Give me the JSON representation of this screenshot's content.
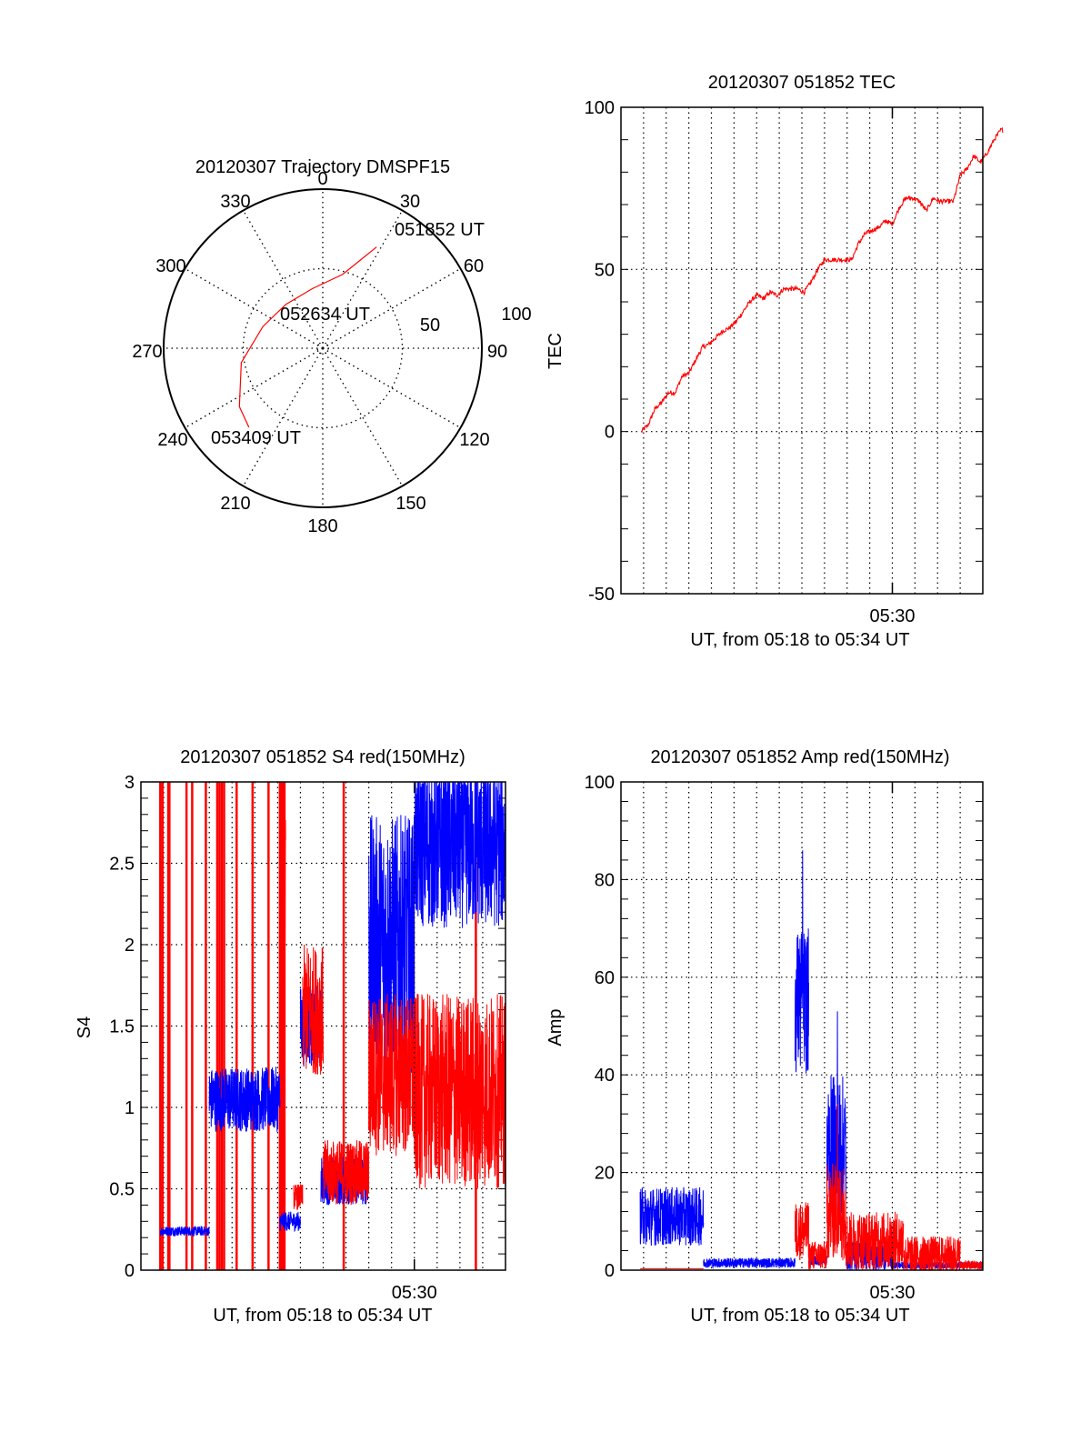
{
  "chart_data": [
    {
      "type": "polar",
      "title": "20120307 Trajectory DMSPF15",
      "angle_ticks": [
        "0",
        "30",
        "60",
        "90",
        "120",
        "150",
        "180",
        "210",
        "240",
        "270",
        "300",
        "330"
      ],
      "radial_ticks": [
        "50",
        "100"
      ],
      "rlim": [
        0,
        100
      ],
      "series": [
        {
          "name": "trajectory",
          "color": "#ff0000",
          "points": [
            [
              28,
              72
            ],
            [
              15,
              48
            ],
            [
              -10,
              38
            ],
            [
              -40,
              36
            ],
            [
              -70,
              40
            ],
            [
              -100,
              52
            ],
            [
              -125,
              64
            ],
            [
              -137,
              68
            ]
          ]
        }
      ],
      "annotations": [
        {
          "text": "051852 UT",
          "at": "start"
        },
        {
          "text": "052634 UT",
          "at": "middle"
        },
        {
          "text": "053409 UT",
          "at": "end"
        }
      ]
    },
    {
      "type": "line",
      "title": "20120307 051852 TEC",
      "xlabel": "UT, from 05:18 to 05:34 UT",
      "ylabel": "TEC",
      "xlim_minutes": [
        0,
        16
      ],
      "ylim": [
        -50,
        100
      ],
      "yticks": [
        "-50",
        "0",
        "50",
        "100"
      ],
      "xticks": [
        {
          "minute": 12,
          "label": "05:30"
        }
      ],
      "grid": true,
      "series": [
        {
          "name": "TEC",
          "color": "#ff0000",
          "x": [
            0.0,
            0.3,
            0.6,
            0.9,
            1.2,
            1.5,
            1.8,
            2.1,
            2.4,
            2.7,
            3.0,
            3.3,
            3.6,
            3.9,
            4.2,
            4.5,
            4.8,
            5.1,
            5.4,
            5.7,
            6.0,
            6.3,
            6.6,
            6.9,
            7.2,
            7.5,
            7.8,
            8.1,
            8.4,
            8.7,
            9.0,
            9.3,
            9.6,
            9.9,
            10.2,
            10.5,
            10.8,
            11.1,
            11.4,
            11.7,
            12.0,
            12.3,
            12.6,
            12.9,
            13.2,
            13.5,
            13.8,
            14.1,
            14.4,
            14.7,
            15.0,
            15.3,
            15.6,
            15.9
          ],
          "y": [
            0,
            2,
            7,
            9,
            12,
            12,
            17,
            18,
            22,
            26,
            27,
            29,
            31,
            32,
            34,
            37,
            40,
            42,
            41,
            43,
            42,
            44,
            44,
            44,
            43,
            46,
            50,
            53,
            53,
            53,
            53,
            53,
            58,
            61,
            62,
            63,
            65,
            64,
            69,
            72,
            72,
            71,
            68,
            72,
            71,
            71,
            71,
            79,
            81,
            85,
            83,
            86,
            90,
            93
          ]
        }
      ]
    },
    {
      "type": "line",
      "title": "20120307 051852 S4 red(150MHz)",
      "xlabel": "UT, from 05:18 to 05:34 UT",
      "ylabel": "S4",
      "xlim_minutes": [
        0,
        16
      ],
      "ylim": [
        0,
        3
      ],
      "yticks": [
        "0",
        "0.5",
        "1",
        "1.5",
        "2",
        "2.5",
        "3"
      ],
      "xticks": [
        {
          "minute": 12,
          "label": "05:30"
        }
      ],
      "grid": true,
      "series": [
        {
          "name": "S4 blue",
          "color": "#0000ff",
          "segments": [
            {
              "x": [
                0.85,
                3.0
              ],
              "level": 0.24,
              "noise": 0.03
            },
            {
              "x": [
                3.0,
                6.1
              ],
              "level": 1.05,
              "noise": 0.2
            },
            {
              "x": [
                6.1,
                7.0
              ],
              "level": 0.3,
              "noise": 0.06
            },
            {
              "x": [
                7.0,
                7.9
              ],
              "level": 1.5,
              "noise": 0.25
            },
            {
              "x": [
                7.9,
                10.0
              ],
              "level": 0.55,
              "noise": 0.15
            },
            {
              "x": [
                10.0,
                12.0
              ],
              "level": 2.0,
              "noise": 0.8
            },
            {
              "x": [
                12.0,
                16.0
              ],
              "level": 2.6,
              "noise": 0.5
            }
          ]
        },
        {
          "name": "S4 red",
          "color": "#ff0000",
          "spikes_minutes": [
            0.85,
            0.95,
            1.2,
            1.25,
            2.0,
            2.25,
            2.85,
            3.35,
            3.45,
            3.55,
            3.65,
            4.2,
            4.9,
            5.6,
            6.1,
            6.15,
            6.2,
            6.25,
            6.3,
            8.9,
            14.7
          ],
          "segments": [
            {
              "x": [
                6.1,
                6.35
              ],
              "level": 2.4,
              "noise": 0.4
            },
            {
              "x": [
                6.7,
                7.1
              ],
              "level": 0.45,
              "noise": 0.08
            },
            {
              "x": [
                7.1,
                8.0
              ],
              "level": 1.6,
              "noise": 0.4
            },
            {
              "x": [
                8.0,
                10.0
              ],
              "level": 0.6,
              "noise": 0.2
            },
            {
              "x": [
                10.0,
                12.0
              ],
              "level": 1.2,
              "noise": 0.5
            },
            {
              "x": [
                12.0,
                16.0
              ],
              "level": 1.1,
              "noise": 0.6
            }
          ]
        }
      ]
    },
    {
      "type": "line",
      "title": "20120307 051852 Amp red(150MHz)",
      "xlabel": "UT, from 05:18 to 05:34 UT",
      "ylabel": "Amp",
      "xlim_minutes": [
        0,
        16
      ],
      "ylim": [
        0,
        100
      ],
      "yticks": [
        "0",
        "20",
        "40",
        "60",
        "80",
        "100"
      ],
      "xticks": [
        {
          "minute": 12,
          "label": "05:30"
        }
      ],
      "grid": true,
      "series": [
        {
          "name": "Amp blue",
          "color": "#0000ff",
          "segments": [
            {
              "x": [
                0.85,
                3.65
              ],
              "level": 11,
              "noise": 6
            },
            {
              "x": [
                3.65,
                7.7
              ],
              "level": 1.5,
              "noise": 1
            },
            {
              "x": [
                7.7,
                8.3
              ],
              "level": 55,
              "noise": 15,
              "peak": 86
            },
            {
              "x": [
                8.3,
                9.1
              ],
              "level": 2,
              "noise": 1
            },
            {
              "x": [
                9.1,
                9.95
              ],
              "level": 25,
              "noise": 15,
              "peak": 53
            },
            {
              "x": [
                9.95,
                12.0
              ],
              "level": 3,
              "noise": 3
            },
            {
              "x": [
                12.0,
                16.0
              ],
              "level": 1,
              "noise": 0.7
            }
          ]
        },
        {
          "name": "Amp red",
          "color": "#ff0000",
          "segments": [
            {
              "x": [
                0.85,
                3.65
              ],
              "level": 0.3,
              "noise": 0
            },
            {
              "x": [
                7.7,
                8.3
              ],
              "level": 8,
              "noise": 6
            },
            {
              "x": [
                8.3,
                9.1
              ],
              "level": 3,
              "noise": 3
            },
            {
              "x": [
                9.1,
                9.95
              ],
              "level": 12,
              "noise": 10,
              "peak": 34
            },
            {
              "x": [
                9.95,
                12.5
              ],
              "level": 6,
              "noise": 6
            },
            {
              "x": [
                12.5,
                15.0
              ],
              "level": 3,
              "noise": 4
            },
            {
              "x": [
                15.0,
                16.0
              ],
              "level": 1,
              "noise": 1
            }
          ]
        }
      ]
    }
  ]
}
